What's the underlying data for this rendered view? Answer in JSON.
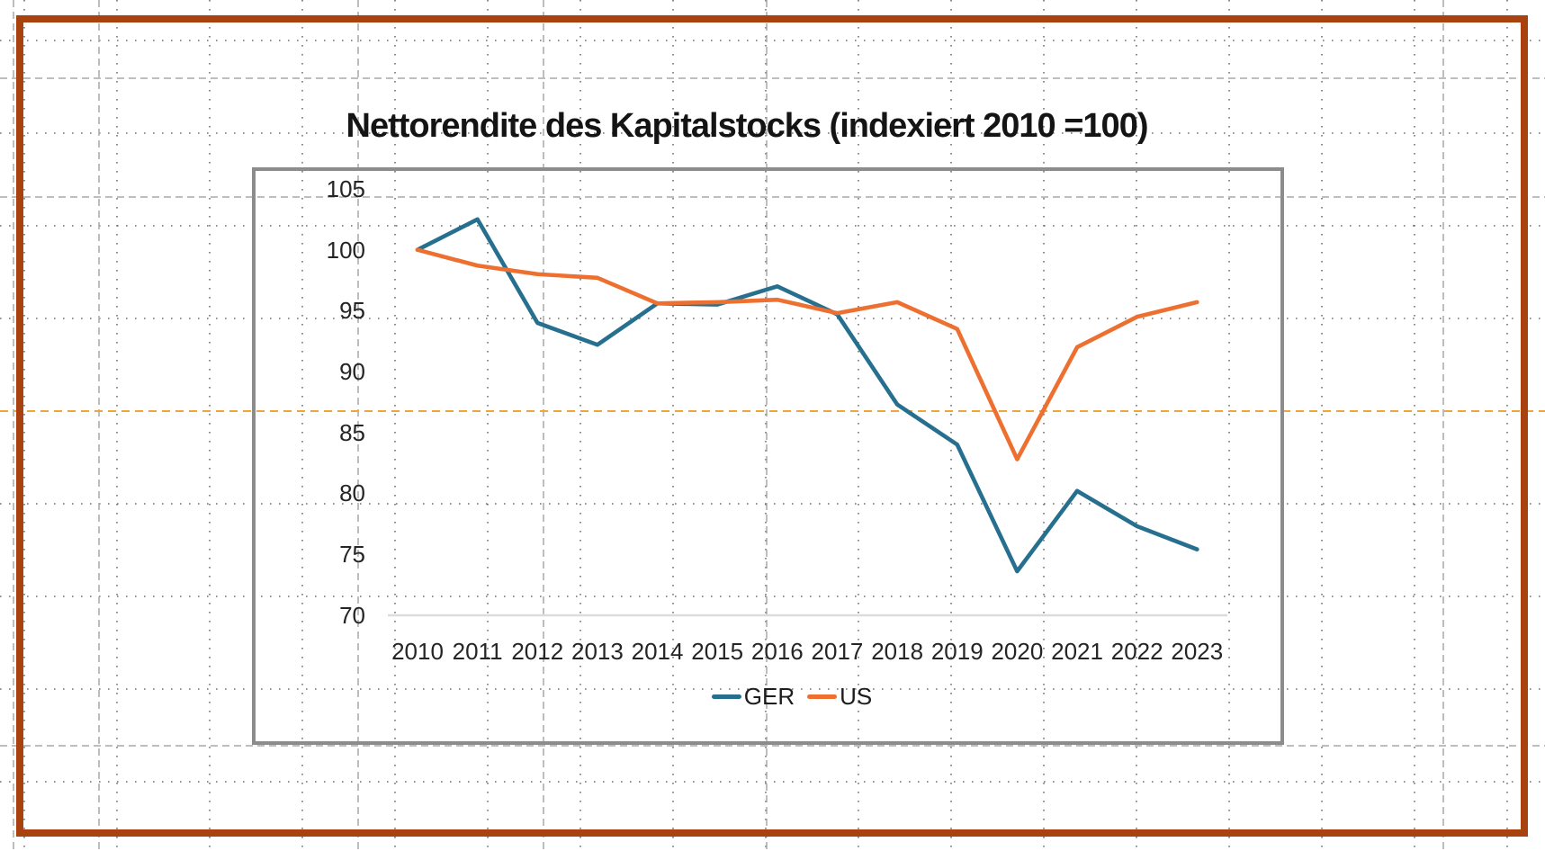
{
  "colors": {
    "page_background": "#FFFFFF",
    "outer_frame_border": "#A8430F",
    "chart_frame_border": "#8C8C8C",
    "axis_line": "#DCDCDC",
    "grid_dots": "#555555",
    "grid_dashed": "#A9A9A9",
    "page_break_line": "#F0A43E",
    "tick_text": "#252525",
    "title_text": "#141414"
  },
  "chart_data": {
    "type": "line",
    "title": "Nettorendite des Kapitalstocks (indexiert 2010 =100)",
    "categories": [
      "2010",
      "2011",
      "2012",
      "2013",
      "2014",
      "2015",
      "2016",
      "2017",
      "2018",
      "2019",
      "2020",
      "2021",
      "2022",
      "2023"
    ],
    "series": [
      {
        "name": "GER",
        "color": "#266F8E",
        "values": [
          100,
          102.5,
          94.0,
          92.2,
          95.6,
          95.5,
          97.0,
          94.7,
          87.3,
          84.0,
          73.6,
          80.2,
          77.3,
          75.4
        ]
      },
      {
        "name": "US",
        "color": "#ED7030",
        "values": [
          100,
          98.7,
          98.0,
          97.7,
          95.6,
          95.7,
          95.9,
          94.8,
          95.7,
          93.5,
          82.8,
          92.0,
          94.5,
          95.7
        ]
      }
    ],
    "xlabel": "",
    "ylabel": "",
    "ylim": [
      70,
      105
    ],
    "yticks": [
      105,
      100,
      95,
      90,
      85,
      80,
      75,
      70
    ],
    "grid": false,
    "legend_position": "bottom"
  }
}
